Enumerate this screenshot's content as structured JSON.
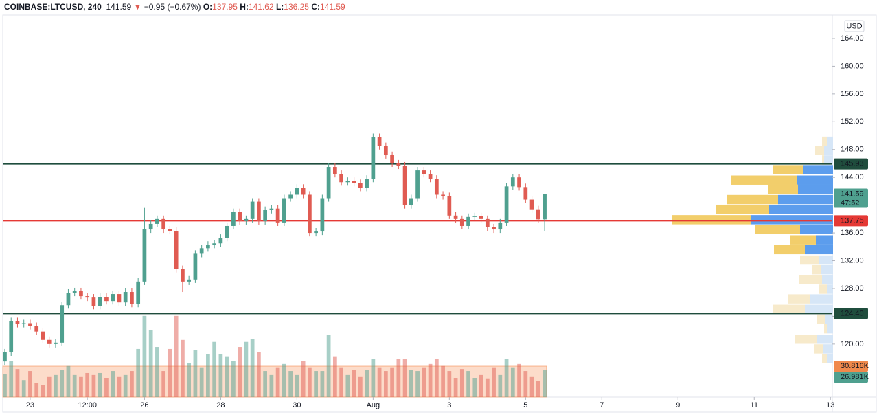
{
  "header": {
    "symbol": "COINBASE:LTCUSD, 240",
    "last": "141.59",
    "arrow": "▼",
    "change": "−0.95 (−0.67%)",
    "ohlc": [
      {
        "label": "O:",
        "value": "137.95"
      },
      {
        "label": "H:",
        "value": "141.62"
      },
      {
        "label": "L:",
        "value": "136.25"
      },
      {
        "label": "C:",
        "value": "141.59"
      }
    ]
  },
  "chart_data": {
    "type": "candlestick",
    "currency": "USD",
    "grid": false,
    "up_color": "#4fa08f",
    "down_color": "#e05b52",
    "xlim": [
      -0.32,
      130.3
    ],
    "xticks": [
      {
        "value": 4,
        "label": "23"
      },
      {
        "value": 13,
        "label": "12:00"
      },
      {
        "value": 22,
        "label": "26"
      },
      {
        "value": 34,
        "label": "28"
      },
      {
        "value": 46,
        "label": "30"
      },
      {
        "value": 58,
        "label": "Aug"
      },
      {
        "value": 70,
        "label": "3"
      },
      {
        "value": 82,
        "label": "5"
      },
      {
        "value": 94,
        "label": "7"
      },
      {
        "value": 106,
        "label": "9"
      },
      {
        "value": 118,
        "label": "11"
      },
      {
        "value": 130,
        "label": "13"
      }
    ],
    "ylim": [
      112.37,
      167.36
    ],
    "yticks": [
      {
        "value": 120,
        "label": "120.00"
      },
      {
        "value": 124,
        "label": "124.00"
      },
      {
        "value": 128,
        "label": "128.00"
      },
      {
        "value": 132,
        "label": "132.00"
      },
      {
        "value": 136,
        "label": "136.00"
      },
      {
        "value": 140,
        "label": "140.00"
      },
      {
        "value": 144,
        "label": "144.00"
      },
      {
        "value": 148,
        "label": "148.00"
      },
      {
        "value": 152,
        "label": "152.00"
      },
      {
        "value": 156,
        "label": "156.00"
      },
      {
        "value": 160,
        "label": "160.00"
      },
      {
        "value": 164,
        "label": "164.00"
      }
    ],
    "open": [
      117.5,
      118.8,
      123.3,
      122.9,
      123.0,
      122.6,
      121.8,
      120.6,
      120.0,
      120.2,
      125.6,
      127.4,
      127.6,
      126.9,
      126.7,
      125.5,
      126.8,
      126.2,
      127.2,
      126.0,
      127.5,
      125.8,
      129.0,
      136.5,
      137.3,
      138.0,
      136.5,
      136.3,
      130.8,
      129.0,
      129.3,
      133.0,
      133.8,
      134.3,
      134.5,
      135.3,
      137.0,
      139.0,
      137.7,
      138.0,
      140.5,
      137.7,
      139.3,
      139.5,
      137.5,
      141.0,
      141.5,
      142.5,
      141.5,
      136.0,
      136.2,
      141.0,
      145.5,
      144.5,
      143.3,
      143.5,
      143.2,
      142.5,
      143.8,
      149.8,
      148.5,
      147.2,
      146.0,
      145.7,
      140.0,
      141.0,
      145.0,
      144.5,
      143.8,
      141.5,
      141.3,
      138.5,
      138.0,
      137.0,
      138.3,
      138.4,
      138.0,
      136.8,
      136.5,
      137.5,
      142.7,
      144.0,
      142.6,
      140.8,
      139.4,
      137.95
    ],
    "high": [
      119.3,
      123.8,
      123.8,
      123.5,
      123.5,
      123.1,
      122.3,
      121.1,
      120.7,
      126.1,
      127.9,
      128.1,
      128.1,
      127.4,
      127.2,
      127.3,
      127.3,
      127.7,
      127.7,
      128.0,
      128.0,
      129.5,
      139.6,
      137.8,
      138.5,
      138.5,
      137.0,
      136.8,
      131.3,
      129.8,
      133.5,
      134.3,
      134.8,
      135.0,
      135.8,
      137.5,
      139.5,
      139.5,
      138.5,
      141.0,
      141.0,
      139.8,
      140.0,
      140.0,
      141.5,
      142.0,
      143.0,
      143.0,
      142.0,
      136.7,
      141.5,
      146.0,
      146.0,
      145.0,
      144.0,
      144.0,
      143.7,
      144.3,
      150.3,
      150.3,
      149.0,
      147.7,
      146.5,
      146.2,
      141.5,
      145.5,
      145.5,
      145.0,
      144.3,
      142.0,
      141.8,
      139.0,
      138.5,
      138.8,
      138.9,
      138.9,
      138.5,
      137.3,
      138.0,
      143.2,
      144.5,
      144.5,
      143.1,
      141.3,
      139.9,
      141.62
    ],
    "low": [
      117.0,
      118.3,
      122.4,
      122.4,
      122.1,
      121.3,
      120.1,
      119.5,
      119.5,
      119.7,
      125.1,
      126.9,
      126.4,
      126.2,
      125.0,
      125.0,
      125.7,
      125.7,
      125.5,
      125.5,
      125.3,
      125.3,
      128.5,
      136.0,
      136.8,
      136.0,
      135.8,
      130.3,
      127.5,
      128.5,
      128.8,
      132.5,
      133.3,
      133.8,
      134.0,
      134.8,
      136.5,
      137.2,
      137.2,
      137.5,
      137.2,
      137.2,
      138.8,
      137.0,
      137.0,
      140.5,
      141.0,
      141.0,
      135.5,
      135.5,
      135.7,
      140.5,
      144.0,
      142.8,
      142.8,
      142.7,
      142.0,
      142.0,
      143.3,
      148.0,
      146.7,
      145.5,
      145.2,
      139.5,
      139.5,
      140.5,
      144.0,
      143.3,
      141.0,
      140.8,
      138.0,
      137.5,
      136.5,
      136.5,
      137.8,
      137.5,
      136.3,
      136.0,
      136.0,
      137.0,
      142.2,
      142.1,
      140.3,
      138.9,
      137.45,
      136.25
    ],
    "close": [
      118.8,
      123.3,
      122.9,
      123.0,
      122.6,
      121.8,
      120.6,
      120.0,
      120.2,
      125.6,
      127.4,
      127.6,
      126.9,
      126.7,
      125.5,
      126.8,
      126.2,
      127.2,
      126.0,
      127.5,
      125.8,
      129.0,
      136.5,
      137.3,
      138.0,
      136.5,
      136.3,
      130.8,
      129.0,
      129.3,
      133.0,
      133.8,
      134.3,
      134.5,
      135.3,
      137.0,
      139.0,
      137.7,
      138.0,
      140.5,
      137.7,
      139.3,
      139.5,
      137.5,
      141.0,
      141.5,
      142.5,
      141.5,
      136.0,
      136.2,
      141.0,
      145.5,
      144.5,
      143.3,
      143.5,
      143.2,
      142.5,
      143.8,
      149.8,
      148.5,
      147.2,
      146.0,
      145.7,
      140.0,
      141.0,
      145.0,
      144.5,
      143.8,
      141.5,
      141.3,
      138.5,
      138.0,
      137.0,
      138.3,
      138.4,
      138.0,
      136.8,
      136.5,
      137.5,
      142.7,
      144.0,
      142.6,
      140.8,
      139.4,
      137.95,
      141.59
    ],
    "volume": {
      "vlim": [
        0,
        381
      ],
      "values": [
        22.6,
        36,
        28,
        17,
        26,
        14,
        12,
        20,
        22,
        27,
        31,
        22,
        20,
        24,
        22,
        24,
        19,
        26,
        20,
        22,
        26,
        48,
        81,
        67,
        50,
        26,
        48,
        81,
        57,
        34,
        47,
        29,
        43,
        55,
        43,
        40,
        36,
        50,
        55,
        58,
        45,
        26,
        22,
        29,
        33,
        26,
        22,
        36,
        29,
        26,
        26,
        62,
        40,
        29,
        22,
        27,
        20,
        27,
        38,
        29,
        26,
        29,
        38,
        38,
        27,
        26,
        29,
        33,
        38,
        31,
        26,
        19,
        28,
        26,
        19,
        22,
        18,
        29,
        22,
        38,
        29,
        33,
        26,
        20,
        16,
        26.981
      ],
      "value_labels": [
        null,
        null,
        null,
        null,
        null,
        null,
        null,
        null,
        null,
        null,
        null,
        null,
        null,
        null,
        null,
        null,
        null,
        null,
        null,
        null,
        null,
        null,
        null,
        null,
        null,
        null,
        null,
        null,
        null,
        null,
        null,
        null,
        null,
        null,
        null,
        null,
        null,
        null,
        null,
        null,
        null,
        null,
        null,
        null,
        null,
        null,
        null,
        null,
        null,
        null,
        null,
        null,
        null,
        null,
        null,
        null,
        null,
        null,
        null,
        null,
        null,
        null,
        null,
        null,
        null,
        null,
        null,
        null,
        null,
        null,
        null,
        null,
        null,
        null,
        null,
        null,
        null,
        null,
        null,
        null,
        null,
        null,
        null,
        null,
        null,
        "26.981K"
      ],
      "ma": {
        "value": 30.816,
        "label": "30.816K"
      }
    },
    "levels": [
      {
        "value": 145.93,
        "label": "145.93",
        "color": "#1f4d3d"
      },
      {
        "value": 137.75,
        "label": "137.75",
        "color": "#e53935"
      },
      {
        "value": 124.4,
        "label": "124.40",
        "color": "#1f4d3d"
      }
    ],
    "last_price": {
      "value": 141.59,
      "label": "141.59",
      "countdown": "47:52"
    },
    "volume_profile": {
      "row_height": 1.43,
      "value_area_low": 132.9,
      "value_area_high": 145.8,
      "up_color": "#5c9ded",
      "down_color": "#f2ce6b",
      "pale_up_color": "#d6e6f7",
      "pale_down_color": "#f7eacb",
      "rows": [
        {
          "price": 149.2,
          "up": 8,
          "down": 8
        },
        {
          "price": 147.9,
          "up": 13,
          "down": 13
        },
        {
          "price": 146.5,
          "up": 13,
          "down": 3
        },
        {
          "price": 145.1,
          "up": 43,
          "down": 45
        },
        {
          "price": 143.6,
          "up": 53,
          "down": 95
        },
        {
          "price": 142.3,
          "up": 51,
          "down": 44
        },
        {
          "price": 140.8,
          "up": 80,
          "down": 75
        },
        {
          "price": 139.4,
          "up": 93,
          "down": 78
        },
        {
          "price": 137.9,
          "up": 120,
          "down": 115
        },
        {
          "price": 136.5,
          "up": 48,
          "down": 65
        },
        {
          "price": 135.0,
          "up": 25,
          "down": 38
        },
        {
          "price": 133.6,
          "up": 41,
          "down": 45
        },
        {
          "price": 132.1,
          "up": 21,
          "down": 27
        },
        {
          "price": 130.7,
          "up": 18,
          "down": 12
        },
        {
          "price": 129.3,
          "up": 16,
          "down": 34
        },
        {
          "price": 127.9,
          "up": 8,
          "down": 12
        },
        {
          "price": 126.5,
          "up": 33,
          "down": 33
        },
        {
          "price": 125.0,
          "up": 41,
          "down": 47
        },
        {
          "price": 123.6,
          "up": 11,
          "down": 12
        },
        {
          "price": 122.2,
          "up": 8,
          "down": 5
        },
        {
          "price": 120.7,
          "up": 23,
          "down": 32
        },
        {
          "price": 119.3,
          "up": 15,
          "down": 13
        },
        {
          "price": 117.9,
          "up": 8,
          "down": 8
        }
      ]
    }
  }
}
